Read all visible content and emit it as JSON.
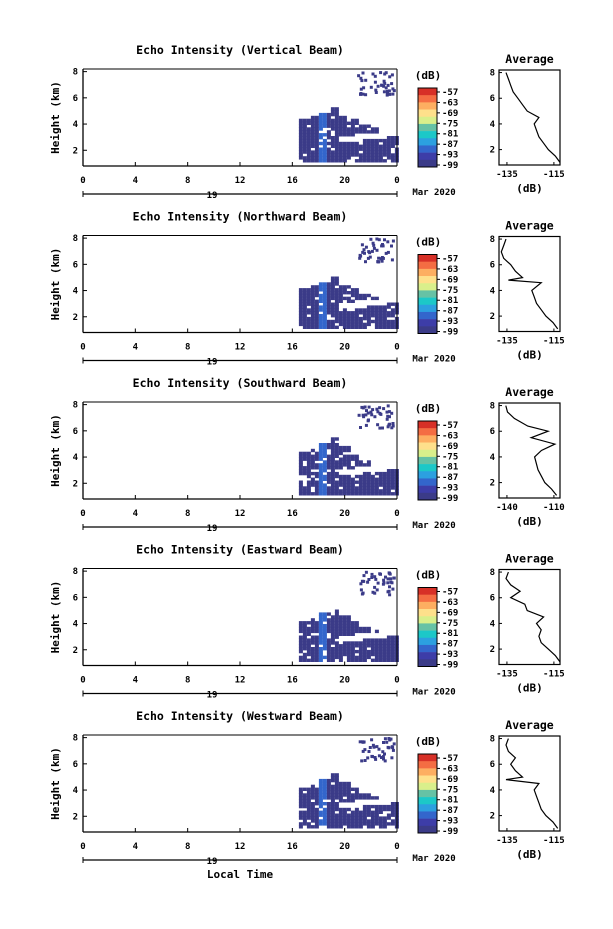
{
  "figure": {
    "x_label": "Local Time",
    "date_day": "19",
    "date_month_year": "Mar 2020",
    "colorbar_unit": "(dB)",
    "colorbar_ticks": [
      "-57",
      "-63",
      "-69",
      "-75",
      "-81",
      "-87",
      "-93",
      "-99"
    ],
    "colorbar_colors": [
      "#d73027",
      "#f46d43",
      "#fdae61",
      "#fee08b",
      "#d9ef8b",
      "#66c2a5",
      "#1cc8c8",
      "#2ca0e0",
      "#3366cc",
      "#3d3da8",
      "#3b3b88"
    ],
    "echo_color": "#3b3b88",
    "echo_core_color": "#3366cc",
    "avg_xlabel": "(dB)",
    "avg_title": "Average"
  },
  "chart_data": [
    {
      "type": "heatmap",
      "title": "Echo Intensity (Vertical Beam)",
      "ylabel": "Height (km)",
      "xticks": [
        "0",
        "4",
        "8",
        "12",
        "16",
        "20",
        "0"
      ],
      "xlim": [
        0,
        24
      ],
      "yticks": [
        "2",
        "4",
        "6",
        "8"
      ],
      "ylim": [
        0.8,
        8.2
      ],
      "echo_onset_hour": 16.5,
      "echo_top_km": [
        4.3,
        4.5,
        4.8,
        5.2,
        4.6,
        4.2,
        3.9,
        3.6,
        3.5,
        3.3
      ],
      "average_profile": {
        "type": "line",
        "title": "Average",
        "xlabel": "(dB)",
        "xticks": [
          "-135",
          "-115"
        ],
        "xlim": [
          -138,
          -112
        ],
        "yticks": [
          "2",
          "4",
          "6",
          "8"
        ],
        "ylim": [
          0.8,
          8.2
        ],
        "profile": [
          [
            -112,
            1
          ],
          [
            -114,
            1.5
          ],
          [
            -117,
            2
          ],
          [
            -119,
            2.5
          ],
          [
            -121,
            3
          ],
          [
            -122,
            3.5
          ],
          [
            -123,
            4
          ],
          [
            -121,
            4.5
          ],
          [
            -126,
            5
          ],
          [
            -128,
            5.5
          ],
          [
            -130,
            6
          ],
          [
            -132,
            6.5
          ],
          [
            -133,
            7
          ],
          [
            -134,
            7.5
          ],
          [
            -135,
            8
          ]
        ]
      }
    },
    {
      "type": "heatmap",
      "title": "Echo Intensity (Northward Beam)",
      "ylabel": "Height (km)",
      "xticks": [
        "0",
        "4",
        "8",
        "12",
        "16",
        "20",
        "0"
      ],
      "xlim": [
        0,
        24
      ],
      "yticks": [
        "2",
        "4",
        "6",
        "8"
      ],
      "ylim": [
        0.8,
        8.2
      ],
      "echo_onset_hour": 16.5,
      "echo_top_km": [
        4.1,
        4.3,
        4.6,
        4.9,
        4.4,
        4.0,
        3.7,
        3.4,
        3.3,
        3.1
      ],
      "average_profile": {
        "type": "line",
        "title": "Average",
        "xlabel": "(dB)",
        "xticks": [
          "-135",
          "-115"
        ],
        "xlim": [
          -138,
          -112
        ],
        "yticks": [
          "2",
          "4",
          "6",
          "8"
        ],
        "ylim": [
          0.8,
          8.2
        ],
        "profile": [
          [
            -113,
            1
          ],
          [
            -115,
            1.5
          ],
          [
            -118,
            2
          ],
          [
            -120,
            2.5
          ],
          [
            -122,
            3
          ],
          [
            -123,
            3.5
          ],
          [
            -124,
            4
          ],
          [
            -120,
            4.6
          ],
          [
            -134,
            4.8
          ],
          [
            -128,
            5
          ],
          [
            -131,
            5.5
          ],
          [
            -133,
            6
          ],
          [
            -136,
            6.5
          ],
          [
            -137,
            7
          ],
          [
            -136,
            7.5
          ],
          [
            -135,
            8
          ]
        ]
      }
    },
    {
      "type": "heatmap",
      "title": "Echo Intensity (Southward Beam)",
      "ylabel": "Height (km)",
      "xticks": [
        "0",
        "4",
        "8",
        "12",
        "16",
        "20",
        "0"
      ],
      "xlim": [
        0,
        24
      ],
      "yticks": [
        "2",
        "4",
        "6",
        "8"
      ],
      "ylim": [
        0.8,
        8.2
      ],
      "echo_onset_hour": 16.5,
      "echo_top_km": [
        4.2,
        4.5,
        4.9,
        5.3,
        4.7,
        4.1,
        3.6,
        3.3,
        3.2,
        3.0
      ],
      "average_profile": {
        "type": "line",
        "title": "Average",
        "xlabel": "(dB)",
        "xticks": [
          "-140",
          "-110"
        ],
        "xlim": [
          -143,
          -107
        ],
        "yticks": [
          "2",
          "4",
          "6",
          "8"
        ],
        "ylim": [
          0.8,
          8.2
        ],
        "profile": [
          [
            -109,
            1
          ],
          [
            -112,
            1.5
          ],
          [
            -116,
            2
          ],
          [
            -118,
            2.5
          ],
          [
            -120,
            3
          ],
          [
            -121,
            3.5
          ],
          [
            -122,
            4
          ],
          [
            -118,
            4.5
          ],
          [
            -110,
            5
          ],
          [
            -124,
            5.5
          ],
          [
            -114,
            6
          ],
          [
            -126,
            6.4
          ],
          [
            -134,
            7
          ],
          [
            -138,
            7.5
          ],
          [
            -139,
            8
          ]
        ]
      }
    },
    {
      "type": "heatmap",
      "title": "Echo Intensity (Eastward Beam)",
      "ylabel": "Height (km)",
      "xticks": [
        "0",
        "4",
        "8",
        "12",
        "16",
        "20",
        "0"
      ],
      "xlim": [
        0,
        24
      ],
      "yticks": [
        "2",
        "4",
        "6",
        "8"
      ],
      "ylim": [
        0.8,
        8.2
      ],
      "echo_onset_hour": 16.5,
      "echo_top_km": [
        4.0,
        4.3,
        4.7,
        5.0,
        4.5,
        4.0,
        3.6,
        3.4,
        3.2,
        3.0
      ],
      "average_profile": {
        "type": "line",
        "title": "Average",
        "xlabel": "(dB)",
        "xticks": [
          "-135",
          "-115"
        ],
        "xlim": [
          -138,
          -112
        ],
        "yticks": [
          "2",
          "4",
          "6",
          "8"
        ],
        "ylim": [
          0.8,
          8.2
        ],
        "profile": [
          [
            -112,
            1
          ],
          [
            -114,
            1.5
          ],
          [
            -117,
            2
          ],
          [
            -120,
            2.5
          ],
          [
            -121,
            3
          ],
          [
            -120,
            3.5
          ],
          [
            -122,
            4
          ],
          [
            -119,
            4.5
          ],
          [
            -126,
            5
          ],
          [
            -127,
            5.5
          ],
          [
            -133,
            6
          ],
          [
            -129,
            6.5
          ],
          [
            -133,
            7
          ],
          [
            -135,
            7.5
          ],
          [
            -134,
            8
          ]
        ]
      }
    },
    {
      "type": "heatmap",
      "title": "Echo Intensity (Westward Beam)",
      "ylabel": "Height (km)",
      "xticks": [
        "0",
        "4",
        "8",
        "12",
        "16",
        "20",
        "0"
      ],
      "xlim": [
        0,
        24
      ],
      "yticks": [
        "2",
        "4",
        "6",
        "8"
      ],
      "ylim": [
        0.8,
        8.2
      ],
      "echo_onset_hour": 16.5,
      "echo_top_km": [
        4.1,
        4.4,
        4.8,
        5.1,
        4.6,
        4.1,
        3.7,
        3.4,
        3.2,
        3.0
      ],
      "average_profile": {
        "type": "line",
        "title": "Average",
        "xlabel": "(dB)",
        "xticks": [
          "-135",
          "-115"
        ],
        "xlim": [
          -138,
          -112
        ],
        "yticks": [
          "2",
          "4",
          "6",
          "8"
        ],
        "ylim": [
          0.8,
          8.2
        ],
        "profile": [
          [
            -113,
            1
          ],
          [
            -115,
            1.5
          ],
          [
            -118,
            2
          ],
          [
            -120,
            2.5
          ],
          [
            -121,
            3
          ],
          [
            -122,
            3.5
          ],
          [
            -123,
            4
          ],
          [
            -121,
            4.5
          ],
          [
            -135,
            4.8
          ],
          [
            -128,
            5
          ],
          [
            -131,
            5.5
          ],
          [
            -133,
            6
          ],
          [
            -131,
            6.5
          ],
          [
            -134,
            7
          ],
          [
            -135,
            7.5
          ],
          [
            -134,
            8
          ]
        ]
      }
    }
  ]
}
